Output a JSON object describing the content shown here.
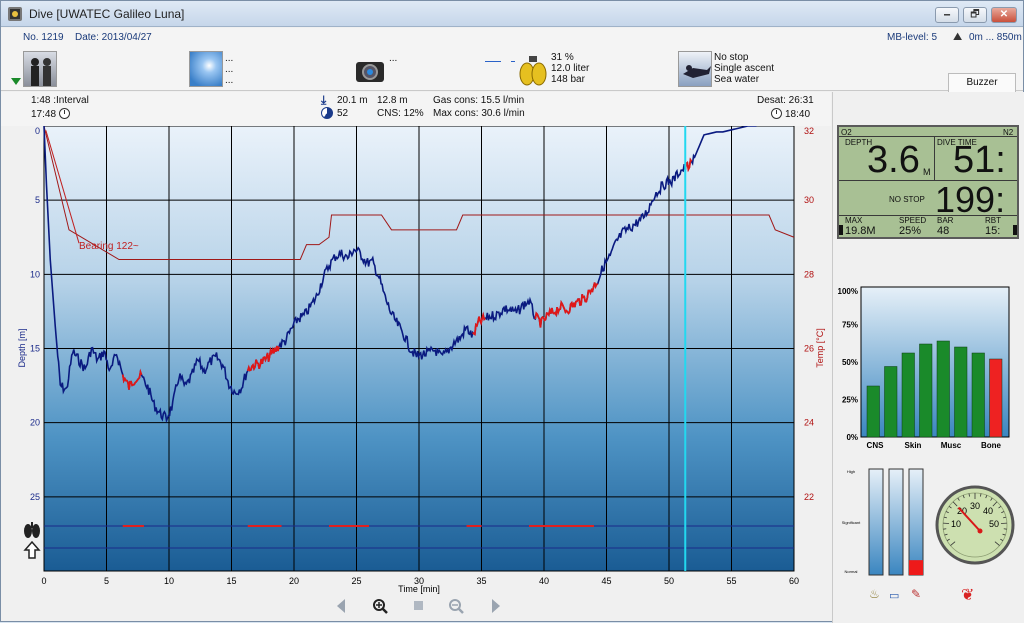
{
  "window": {
    "title": "Dive  [UWATEC Galileo Luna]",
    "buttons": [
      "🗕",
      "🗗",
      "✕"
    ]
  },
  "header": {
    "dive_no": "No. 1219",
    "date": "Date: 2013/04/27",
    "mb_level": "MB-level: 5",
    "altitude": "0m ... 850m"
  },
  "info": {
    "weather": [
      "...",
      "...",
      "..."
    ],
    "camera": [
      "..."
    ],
    "tank": [
      "31 %",
      "12.0 liter",
      "148 bar"
    ],
    "deco": [
      "No stop",
      "Single ascent",
      "Sea water"
    ],
    "buzzer": "Buzzer"
  },
  "stats": {
    "interval": "1:48 :Interval",
    "entry_time": "17:48",
    "max_depth": "20.1 m",
    "avg_depth": "12.8 m",
    "gas_cons": "Gas cons: 15.5 l/min",
    "o2": "52",
    "cns": "CNS:  12%",
    "max_cons": "Max cons: 30.6 l/min",
    "desat": "Desat: 26:31",
    "exit_time": "18:40"
  },
  "chart_data": {
    "type": "line",
    "xlabel": "Time [min]",
    "ylabel": "Depth [m]",
    "y2label": "Temp [°C]",
    "xlim": [
      0,
      60
    ],
    "ylim": [
      0,
      30
    ],
    "y2lim": [
      20,
      32
    ],
    "xticks": [
      0,
      5,
      10,
      15,
      20,
      25,
      30,
      35,
      40,
      45,
      50,
      55,
      60
    ],
    "yticks": [
      0,
      5,
      10,
      15,
      20,
      25
    ],
    "y2ticks": [
      32,
      30,
      28,
      26,
      24,
      22
    ],
    "annotation": "Bearing 122~",
    "cursor_min": 51.3,
    "depth_series": {
      "t": [
        0,
        0.2,
        0.5,
        0.9,
        1.3,
        1.8,
        2.3,
        2.8,
        3.3,
        3.8,
        4.3,
        4.8,
        5.3,
        5.8,
        6.3,
        6.8,
        7.3,
        7.8,
        8.3,
        8.8,
        9.3,
        9.8,
        10.3,
        10.8,
        11.3,
        11.8,
        12.3,
        12.8,
        13.3,
        13.8,
        14.3,
        14.8,
        15.3,
        15.8,
        16.3,
        16.8,
        17.3,
        17.8,
        18.3,
        18.8,
        19.3,
        19.8,
        20.3,
        20.8,
        21.3,
        21.8,
        22.3,
        22.8,
        23.3,
        23.8,
        24.3,
        24.8,
        25.3,
        25.8,
        26.3,
        26.8,
        27.3,
        27.8,
        28.3,
        28.8,
        29.3,
        29.8,
        30.3,
        30.8,
        31.3,
        31.8,
        32.3,
        32.8,
        33.3,
        33.8,
        34.3,
        34.8,
        35.3,
        35.8,
        36.3,
        36.8,
        37.3,
        37.8,
        38.3,
        38.8,
        39.3,
        39.8,
        40.3,
        40.8,
        41.3,
        41.8,
        42.3,
        42.8,
        43.3,
        43.8,
        44.3,
        44.8,
        45.3,
        45.8,
        46.3,
        46.8,
        47.3,
        47.8,
        48.3,
        48.8,
        49.3,
        49.8,
        50.3,
        50.8,
        51.3,
        51.8,
        52.3,
        52.8,
        53.3,
        53.8,
        54.3,
        54.8,
        55.3,
        55.8,
        56.3,
        56.8,
        57.0
      ],
      "d": [
        0,
        4,
        9,
        13.5,
        17.5,
        17.8,
        15.2,
        15.8,
        16.4,
        15.0,
        15.8,
        15.2,
        16.6,
        15.3,
        16.8,
        17.6,
        17.0,
        16.9,
        17.6,
        18.8,
        19.4,
        19.7,
        18.8,
        16.8,
        17.6,
        16.9,
        15.8,
        16.5,
        15.9,
        15.6,
        16.1,
        17.4,
        18.0,
        17.6,
        16.4,
        16.1,
        16.0,
        15.7,
        15.3,
        14.8,
        14.5,
        13.7,
        13.0,
        12.8,
        12.2,
        11.5,
        10.3,
        9.4,
        8.8,
        8.6,
        8.9,
        8.3,
        8.6,
        9.2,
        9.2,
        10.2,
        11.6,
        12.7,
        13.4,
        14.1,
        15.0,
        15.5,
        15.4,
        15.3,
        15.1,
        15.6,
        15.2,
        14.6,
        14.3,
        13.6,
        14.2,
        13.2,
        13.0,
        12.8,
        12.7,
        12.3,
        12.4,
        12.6,
        12.1,
        11.8,
        12.9,
        13.3,
        12.8,
        12.5,
        12.2,
        12.4,
        12.1,
        11.8,
        11.6,
        11.0,
        10.4,
        9.4,
        8.8,
        7.8,
        7.2,
        6.9,
        6.6,
        6.3,
        5.7,
        4.7,
        4.2,
        3.8,
        3.7,
        3.1,
        2.8,
        2.6,
        1.6,
        0.6,
        0.5,
        0.4,
        0.4,
        0.3,
        0.2,
        0.1,
        0.0,
        0.0,
        0.0
      ]
    },
    "warning_segments_min": [
      [
        6.3,
        7.8
      ],
      [
        16.3,
        18.8
      ],
      [
        34.3,
        35.3
      ],
      [
        39.3,
        44.3
      ],
      [
        51.3,
        51.8
      ]
    ],
    "temp_series": {
      "t": [
        0,
        2,
        6,
        18,
        20.5,
        21,
        22,
        22.8,
        23,
        27,
        27.8,
        33,
        33.5,
        40,
        47,
        58,
        58.5,
        60
      ],
      "c": [
        32,
        29.2,
        28.4,
        28.4,
        28.4,
        28.8,
        28.8,
        29,
        29.6,
        29.6,
        29.2,
        29.2,
        29.6,
        29.6,
        29.6,
        29.6,
        29.2,
        29
      ]
    },
    "micro_bubble_segments_min": [
      [
        6.3,
        8.0
      ],
      [
        16.3,
        19.0
      ],
      [
        22.8,
        26.0
      ],
      [
        33.8,
        35.0
      ],
      [
        38.8,
        44.0
      ]
    ]
  },
  "lcd": {
    "o2": "O2",
    "n2": "N2",
    "depth_label": "DEPTH",
    "depth_value": "3.6",
    "depth_unit": "M",
    "dive_time_label": "DIVE TIME",
    "dive_time_value": "51:",
    "nostop_label": "NO STOP",
    "nostop_value": "199:",
    "max_label": "MAX",
    "max_value": "19.8M",
    "speed_label": "SPEED",
    "speed_value": "25%",
    "bar_label": "BAR",
    "bar_value": "48",
    "rbt_label": "RBT",
    "rbt_value": "15:"
  },
  "tissue_chart": {
    "yticks": [
      "100%",
      "75%",
      "50%",
      "25%",
      "0%"
    ],
    "categories": [
      "CNS",
      "Skin",
      "Musc",
      "Bone"
    ],
    "values": [
      34,
      47,
      56,
      62,
      64,
      60,
      56,
      52
    ],
    "colors": [
      "#1a8a2a",
      "#1a8a2a",
      "#1a8a2a",
      "#1a8a2a",
      "#1a8a2a",
      "#1a8a2a",
      "#1a8a2a",
      "#ee2222"
    ]
  },
  "bubble_bars": {
    "labels": [
      "High",
      "Significant",
      "Normal"
    ],
    "levels": [
      0,
      0,
      0.14
    ]
  },
  "gauge": {
    "ticks": [
      "10",
      "20",
      "30",
      "40",
      "50"
    ],
    "needle_value": 20
  }
}
